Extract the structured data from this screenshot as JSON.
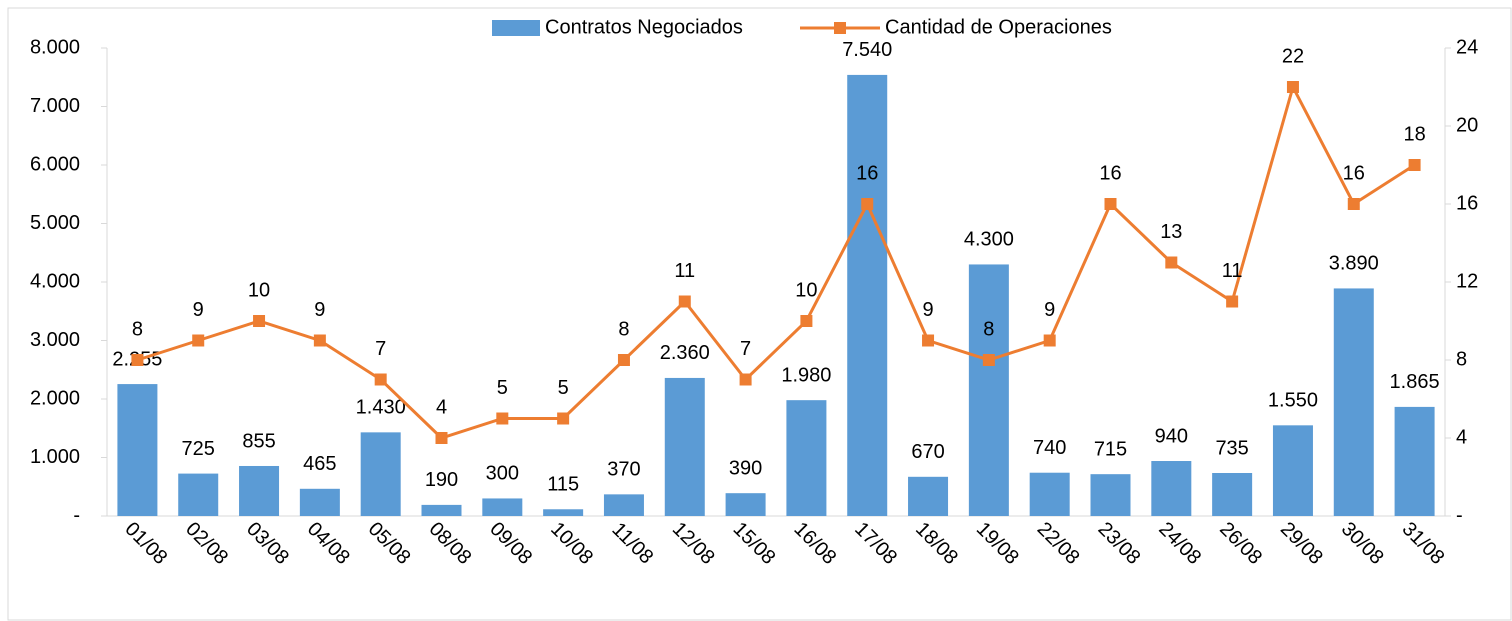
{
  "chart_data": {
    "type": "bar",
    "categories": [
      "01/08",
      "02/08",
      "03/08",
      "04/08",
      "05/08",
      "08/08",
      "09/08",
      "10/08",
      "11/08",
      "12/08",
      "15/08",
      "16/08",
      "17/08",
      "18/08",
      "19/08",
      "22/08",
      "23/08",
      "24/08",
      "26/08",
      "29/08",
      "30/08",
      "31/08"
    ],
    "series": [
      {
        "name": "Contratos Negociados",
        "type": "bar",
        "color": "#5b9bd5",
        "values": [
          2255,
          725,
          855,
          465,
          1430,
          190,
          300,
          115,
          370,
          2360,
          390,
          1980,
          7540,
          670,
          4300,
          740,
          715,
          940,
          735,
          1550,
          3890,
          1865
        ],
        "value_labels": [
          "2.255",
          "725",
          "855",
          "465",
          "1.430",
          "190",
          "300",
          "115",
          "370",
          "2.360",
          "390",
          "1.980",
          "7.540",
          "670",
          "4.300",
          "740",
          "715",
          "940",
          "735",
          "1.550",
          "3.890",
          "1.865"
        ]
      },
      {
        "name": "Cantidad de Operaciones",
        "type": "line",
        "color": "#ed7d31",
        "axis": "y2",
        "values": [
          8,
          9,
          10,
          9,
          7,
          4,
          5,
          5,
          8,
          11,
          7,
          10,
          16,
          9,
          8,
          9,
          16,
          13,
          11,
          22,
          16,
          18
        ]
      }
    ],
    "ylim": [
      0,
      8000
    ],
    "yticks": [
      {
        "value": 0,
        "label": "-"
      },
      {
        "value": 1000,
        "label": "1.000"
      },
      {
        "value": 2000,
        "label": "2.000"
      },
      {
        "value": 3000,
        "label": "3.000"
      },
      {
        "value": 4000,
        "label": "4.000"
      },
      {
        "value": 5000,
        "label": "5.000"
      },
      {
        "value": 6000,
        "label": "6.000"
      },
      {
        "value": 7000,
        "label": "7.000"
      },
      {
        "value": 8000,
        "label": "8.000"
      }
    ],
    "y2lim": [
      0,
      24
    ],
    "y2ticks": [
      {
        "value": 0,
        "label": "-"
      },
      4,
      8,
      12,
      16,
      20,
      24
    ],
    "legend": "top"
  }
}
